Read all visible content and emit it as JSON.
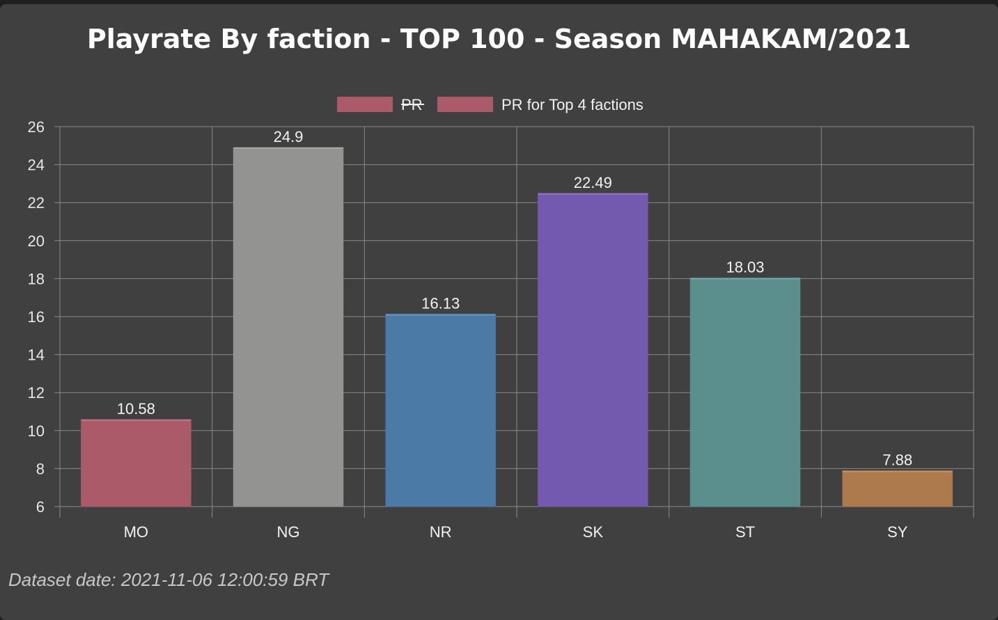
{
  "chart_data": {
    "type": "bar",
    "title": "Playrate By faction - TOP 100 - Season MAHAKAM/2021",
    "categories": [
      "MO",
      "NG",
      "NR",
      "SK",
      "ST",
      "SY"
    ],
    "values": [
      10.58,
      24.9,
      16.13,
      22.49,
      18.03,
      7.88
    ],
    "value_labels": [
      "10.58",
      "24.9",
      "16.13",
      "22.49",
      "18.03",
      "7.88"
    ],
    "bar_colors": [
      "#ab5a6a",
      "#939391",
      "#4b7aa6",
      "#745aae",
      "#5a8f8e",
      "#ad7b4b"
    ],
    "ylim": [
      6,
      26
    ],
    "yticks": [
      "6",
      "8",
      "10",
      "12",
      "14",
      "16",
      "18",
      "20",
      "22",
      "24",
      "26"
    ],
    "ytick_values": [
      6,
      8,
      10,
      12,
      14,
      16,
      18,
      20,
      22,
      24,
      26
    ],
    "grid": true,
    "legend_position": "top-center",
    "legend": [
      {
        "label": "PR",
        "color": "#ab5a6a",
        "hidden": true
      },
      {
        "label": "PR for Top 4 factions",
        "color": "#ab5a6a",
        "hidden": false
      }
    ],
    "xlabel": "",
    "ylabel": ""
  },
  "footer": {
    "dataset_date": "Dataset date: 2021-11-06 12:00:59 BRT"
  }
}
